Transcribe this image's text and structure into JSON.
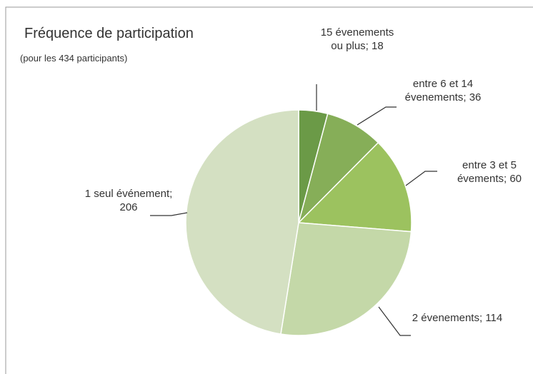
{
  "chart_data": {
    "type": "pie",
    "title": "Fréquence de participation",
    "subtitle": "(pour les 434 participants)",
    "categories": [
      "15 évenements ou plus;",
      "entre 6 et 14 évenements;",
      "entre 3 et 5 évements;",
      "2 évenements;",
      "1 seul événement;"
    ],
    "values": [
      18,
      36,
      60,
      114,
      206
    ],
    "colors": [
      "#6b9a47",
      "#86ae58",
      "#9cc25f",
      "#c4d8a8",
      "#d4e0c2"
    ]
  }
}
